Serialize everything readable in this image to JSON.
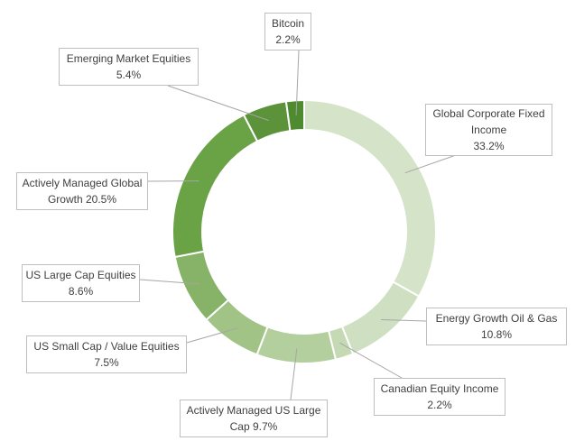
{
  "chart_data": {
    "type": "donut",
    "title": "",
    "legend": "none",
    "series": [
      {
        "name": "Global Corporate Fixed Income",
        "value": 33.2,
        "label_lines": [
          "Global Corporate Fixed",
          "Income",
          "33.2%"
        ],
        "color": "#d5e3c9"
      },
      {
        "name": "Energy Growth Oil & Gas",
        "value": 10.8,
        "label_lines": [
          "Energy Growth Oil & Gas",
          "10.8%"
        ],
        "color": "#cfdfc2"
      },
      {
        "name": "Canadian Equity Income",
        "value": 2.2,
        "label_lines": [
          "Canadian Equity Income",
          "2.2%"
        ],
        "color": "#c5d9b4"
      },
      {
        "name": "Actively Managed US Large Cap",
        "value": 9.7,
        "label_lines": [
          "Actively Managed US Large",
          "Cap 9.7%"
        ],
        "color": "#b3cf9d"
      },
      {
        "name": "US Small Cap / Value Equities",
        "value": 7.5,
        "label_lines": [
          "US Small Cap / Value Equities",
          "7.5%"
        ],
        "color": "#a1c386"
      },
      {
        "name": "US Large Cap Equities",
        "value": 8.6,
        "label_lines": [
          "US Large Cap Equities",
          "8.6%"
        ],
        "color": "#86b368"
      },
      {
        "name": "Actively Managed Global Growth",
        "value": 20.5,
        "label_lines": [
          "Actively Managed Global",
          "Growth 20.5%"
        ],
        "color": "#6aa246"
      },
      {
        "name": "Emerging Market Equities",
        "value": 5.4,
        "label_lines": [
          "Emerging Market Equities",
          "5.4%"
        ],
        "color": "#5b923a"
      },
      {
        "name": "Bitcoin",
        "value": 2.2,
        "label_lines": [
          "Bitcoin",
          "2.2%"
        ],
        "color": "#4e8a2e"
      }
    ]
  }
}
